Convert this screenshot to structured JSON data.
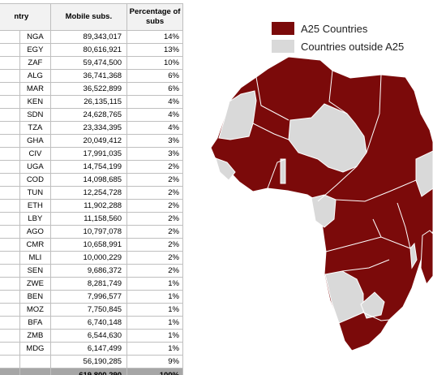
{
  "table": {
    "headers": {
      "country": "ntry",
      "subs": "Mobile subs.",
      "pct": "Percentage of subs"
    },
    "rows": [
      {
        "name": "",
        "code": "NGA",
        "subs": "89,343,017",
        "pct": "14%"
      },
      {
        "name": "",
        "code": "EGY",
        "subs": "80,616,921",
        "pct": "13%"
      },
      {
        "name": "",
        "code": "ZAF",
        "subs": "59,474,500",
        "pct": "10%"
      },
      {
        "name": "",
        "code": "ALG",
        "subs": "36,741,368",
        "pct": "6%"
      },
      {
        "name": "",
        "code": "MAR",
        "subs": "36,522,899",
        "pct": "6%"
      },
      {
        "name": "",
        "code": "KEN",
        "subs": "26,135,115",
        "pct": "4%"
      },
      {
        "name": "",
        "code": "SDN",
        "subs": "24,628,765",
        "pct": "4%"
      },
      {
        "name": "",
        "code": "TZA",
        "subs": "23,334,395",
        "pct": "4%"
      },
      {
        "name": "",
        "code": "GHA",
        "subs": "20,049,412",
        "pct": "3%"
      },
      {
        "name": "e",
        "code": "CIV",
        "subs": "17,991,035",
        "pct": "3%"
      },
      {
        "name": "",
        "code": "UGA",
        "subs": "14,754,199",
        "pct": "2%"
      },
      {
        "name": "",
        "code": "COD",
        "subs": "14,098,685",
        "pct": "2%"
      },
      {
        "name": "",
        "code": "TUN",
        "subs": "12,254,728",
        "pct": "2%"
      },
      {
        "name": "",
        "code": "ETH",
        "subs": "11,902,288",
        "pct": "2%"
      },
      {
        "name": "",
        "code": "LBY",
        "subs": "11,158,560",
        "pct": "2%"
      },
      {
        "name": "",
        "code": "AGO",
        "subs": "10,797,078",
        "pct": "2%"
      },
      {
        "name": "",
        "code": "CMR",
        "subs": "10,658,991",
        "pct": "2%"
      },
      {
        "name": "",
        "code": "MLI",
        "subs": "10,000,229",
        "pct": "2%"
      },
      {
        "name": "",
        "code": "SEN",
        "subs": "9,686,372",
        "pct": "2%"
      },
      {
        "name": "",
        "code": "ZWE",
        "subs": "8,281,749",
        "pct": "1%"
      },
      {
        "name": "",
        "code": "BEN",
        "subs": "7,996,577",
        "pct": "1%"
      },
      {
        "name": "e",
        "code": "MOZ",
        "subs": "7,750,845",
        "pct": "1%"
      },
      {
        "name": "o",
        "code": "BFA",
        "subs": "6,740,148",
        "pct": "1%"
      },
      {
        "name": "",
        "code": "ZMB",
        "subs": "6,544,630",
        "pct": "1%"
      },
      {
        "name": "",
        "code": "MDG",
        "subs": "6,147,499",
        "pct": "1%"
      },
      {
        "name": "",
        "code": "",
        "subs": "56,190,285",
        "pct": "9%"
      }
    ],
    "total": {
      "subs": "619,800,290",
      "pct": "100%"
    }
  },
  "legend": {
    "a25": {
      "label": "A25 Countries",
      "color": "#7b0a0a"
    },
    "outside": {
      "label": "Countries outside A25",
      "color": "#d9d9d9"
    }
  }
}
